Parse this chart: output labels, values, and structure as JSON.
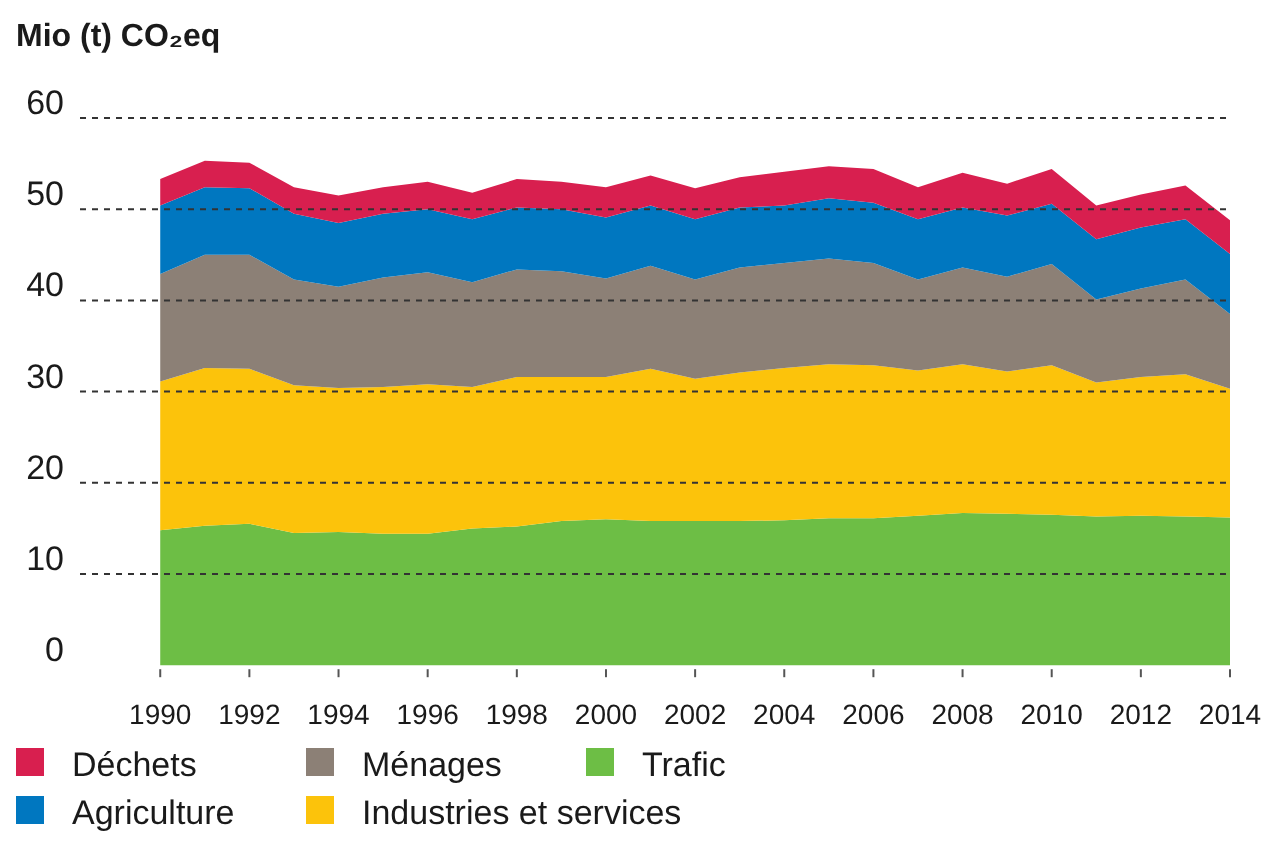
{
  "chart_data": {
    "type": "area",
    "title": "Mio (t) CO₂eq",
    "stacked": true,
    "grid": "y",
    "legend": "bottom",
    "x": [
      1990,
      1991,
      1992,
      1993,
      1994,
      1995,
      1996,
      1997,
      1998,
      1999,
      2000,
      2001,
      2002,
      2003,
      2004,
      2005,
      2006,
      2007,
      2008,
      2009,
      2010,
      2011,
      2012,
      2013,
      2014
    ],
    "xlim": [
      1988.2,
      2014
    ],
    "xticks": [
      1990,
      1992,
      1994,
      1996,
      1998,
      2000,
      2002,
      2004,
      2006,
      2008,
      2010,
      2012,
      2014
    ],
    "ylim": [
      0,
      60
    ],
    "yticks": [
      0,
      10,
      20,
      30,
      40,
      50,
      60
    ],
    "series": [
      {
        "name": "Trafic",
        "color": "#6dbe45",
        "values": [
          14.8,
          15.3,
          15.5,
          14.5,
          14.6,
          14.4,
          14.4,
          15.0,
          15.2,
          15.8,
          16.0,
          15.8,
          15.8,
          15.8,
          15.9,
          16.1,
          16.1,
          16.4,
          16.7,
          16.6,
          16.5,
          16.3,
          16.4,
          16.3,
          16.2
        ]
      },
      {
        "name": "Industries et services",
        "color": "#fcc30b",
        "values": [
          16.3,
          17.3,
          17.0,
          16.2,
          15.8,
          16.1,
          16.4,
          15.5,
          16.4,
          15.8,
          15.6,
          16.7,
          15.6,
          16.3,
          16.7,
          16.9,
          16.8,
          15.9,
          16.3,
          15.6,
          16.4,
          14.7,
          15.2,
          15.6,
          14.1
        ]
      },
      {
        "name": "Ménages",
        "color": "#8c8076",
        "values": [
          11.8,
          12.4,
          12.5,
          11.6,
          11.1,
          12.0,
          12.3,
          11.5,
          11.8,
          11.6,
          10.8,
          11.3,
          10.9,
          11.5,
          11.5,
          11.6,
          11.2,
          10.0,
          10.6,
          10.4,
          11.1,
          9.1,
          9.7,
          10.4,
          8.2
        ]
      },
      {
        "name": "Agriculture",
        "color": "#0077c0",
        "values": [
          7.5,
          7.4,
          7.3,
          7.2,
          7.0,
          7.0,
          6.9,
          6.9,
          6.8,
          6.8,
          6.7,
          6.6,
          6.6,
          6.6,
          6.3,
          6.6,
          6.6,
          6.6,
          6.6,
          6.7,
          6.6,
          6.6,
          6.7,
          6.6,
          6.6
        ]
      },
      {
        "name": "Déchets",
        "color": "#d81f4f",
        "values": [
          2.9,
          2.9,
          2.8,
          2.9,
          3.0,
          2.9,
          3.0,
          2.9,
          3.1,
          3.0,
          3.3,
          3.3,
          3.4,
          3.3,
          3.7,
          3.5,
          3.7,
          3.5,
          3.8,
          3.5,
          3.8,
          3.7,
          3.6,
          3.7,
          3.7
        ]
      }
    ]
  }
}
